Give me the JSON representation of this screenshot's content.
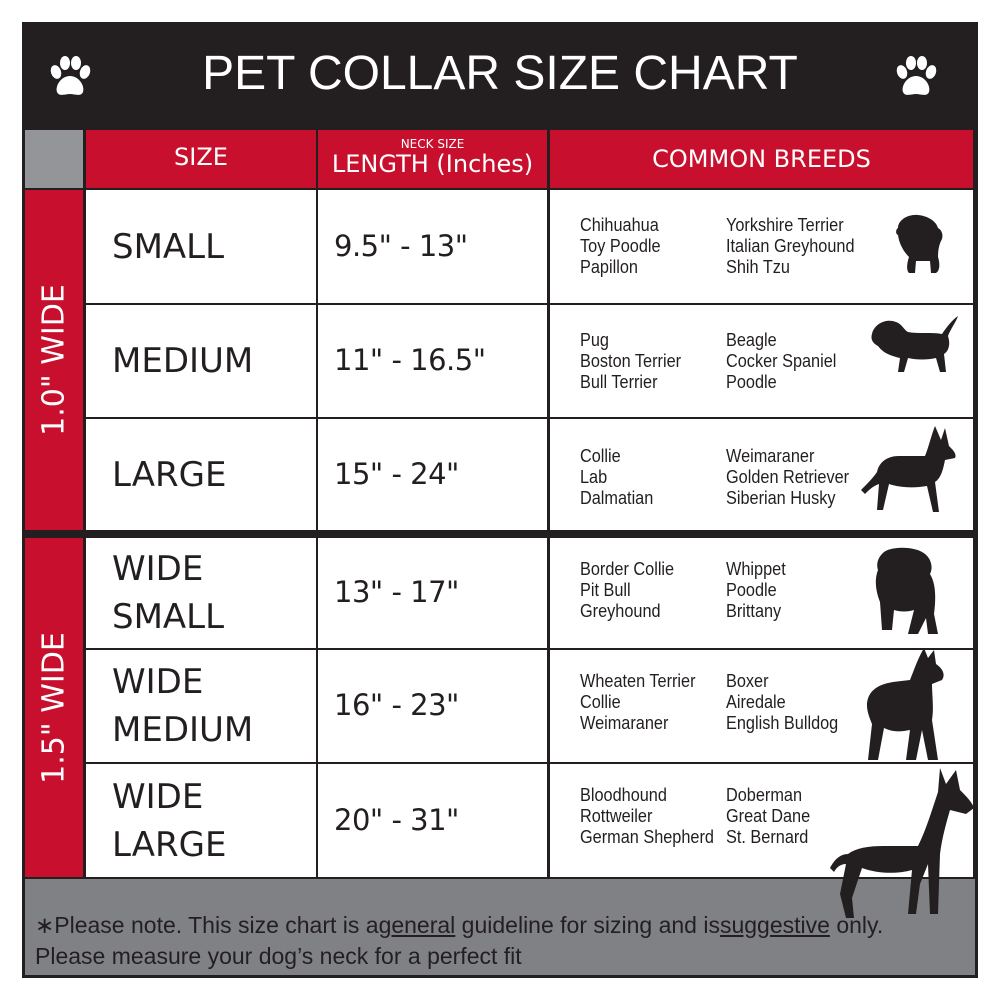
{
  "title": "PET COLLAR SIZE CHART",
  "icons": {
    "left": "paw-icon",
    "right": "paw-icon"
  },
  "colors": {
    "red": "#c8102e",
    "dark": "#231f20",
    "gray": "#808184"
  },
  "headers": {
    "size": "SIZE",
    "length_top": "NECK SIZE",
    "length": "LENGTH (Inches)",
    "breeds": "COMMON BREEDS"
  },
  "groups": [
    {
      "label": "1.0\" WIDE"
    },
    {
      "label": "1.5\" WIDE"
    }
  ],
  "rows": [
    {
      "size": [
        "SMALL"
      ],
      "length": "9.5\" - 13\"",
      "breeds_a": [
        "Chihuahua",
        "Toy Poodle",
        "Papillon"
      ],
      "breeds_b": [
        "Yorkshire Terrier",
        "Italian Greyhound",
        "Shih Tzu"
      ],
      "icon": "small-dog-silhouette-icon"
    },
    {
      "size": [
        "MEDIUM"
      ],
      "length": "11\" - 16.5\"",
      "breeds_a": [
        "Pug",
        "Boston Terrier",
        "Bull Terrier"
      ],
      "breeds_b": [
        "Beagle",
        "Cocker Spaniel",
        "Poodle"
      ],
      "icon": "medium-dog-silhouette-icon"
    },
    {
      "size": [
        "LARGE"
      ],
      "length": "15\" - 24\"",
      "breeds_a": [
        "Collie",
        "Lab",
        "Dalmatian"
      ],
      "breeds_b": [
        "Weimaraner",
        "Golden Retriever",
        "Siberian Husky"
      ],
      "icon": "large-dog-silhouette-icon"
    },
    {
      "size": [
        "WIDE",
        "SMALL"
      ],
      "length": "13\" - 17\"",
      "breeds_a": [
        "Border Collie",
        "Pit Bull",
        "Greyhound"
      ],
      "breeds_b": [
        "Whippet",
        "Poodle",
        "Brittany"
      ],
      "icon": "bulldog-silhouette-icon"
    },
    {
      "size": [
        "WIDE",
        "MEDIUM"
      ],
      "length": "16\" - 23\"",
      "breeds_a": [
        "Wheaten Terrier",
        "Collie",
        "Weimaraner"
      ],
      "breeds_b": [
        "Boxer",
        "Airedale",
        "English Bulldog"
      ],
      "icon": "pitbull-silhouette-icon"
    },
    {
      "size": [
        "WIDE",
        "LARGE"
      ],
      "length": "20\" - 31\"",
      "breeds_a": [
        "Bloodhound",
        "Rottweiler",
        "German Shepherd"
      ],
      "breeds_b": [
        "Doberman",
        "Great Dane",
        "St. Bernard"
      ],
      "icon": "doberman-silhouette-icon"
    }
  ],
  "footer": {
    "prefix": "∗Please note. This size chart is a",
    "u1": "general",
    "mid": " guideline for sizing and is",
    "u2": "suggestive",
    "suffix": " only.",
    "line2": "Please measure your dog’s neck for a perfect fit"
  }
}
